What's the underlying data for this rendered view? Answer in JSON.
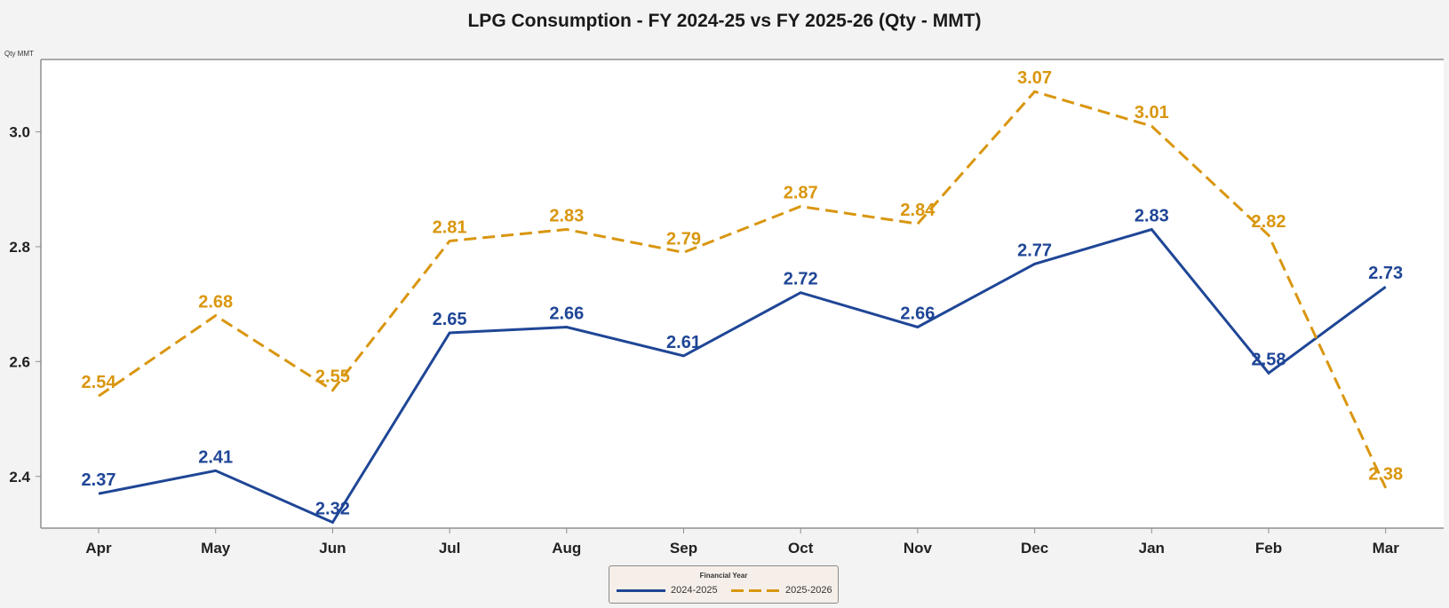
{
  "chart_data": {
    "type": "line",
    "title": "LPG Consumption - FY 2024-25 vs FY 2025-26 (Qty - MMT)",
    "xlabel": "",
    "ylabel": "Qty MMT",
    "categories": [
      "Apr",
      "May",
      "Jun",
      "Jul",
      "Aug",
      "Sep",
      "Oct",
      "Nov",
      "Dec",
      "Jan",
      "Feb",
      "Mar"
    ],
    "ylim": [
      2.31,
      3.126
    ],
    "yticks": [
      2.4,
      2.6,
      2.8,
      3.0
    ],
    "ytick_labels": [
      "2.4",
      "2.6",
      "2.8",
      "3.0"
    ],
    "grid": false,
    "legend": {
      "title": "Financial Year",
      "placement": "bottom-center"
    },
    "series": [
      {
        "name": "2024-2025",
        "style": "solid",
        "color": "#1f4696",
        "values": [
          2.37,
          2.41,
          2.32,
          2.65,
          2.66,
          2.61,
          2.72,
          2.66,
          2.77,
          2.83,
          2.58,
          2.73
        ]
      },
      {
        "name": "2025-2026",
        "style": "dashed",
        "color": "#d9960f",
        "values": [
          2.54,
          2.68,
          2.55,
          2.81,
          2.83,
          2.79,
          2.87,
          2.84,
          3.07,
          3.01,
          2.82,
          2.38
        ]
      }
    ]
  }
}
